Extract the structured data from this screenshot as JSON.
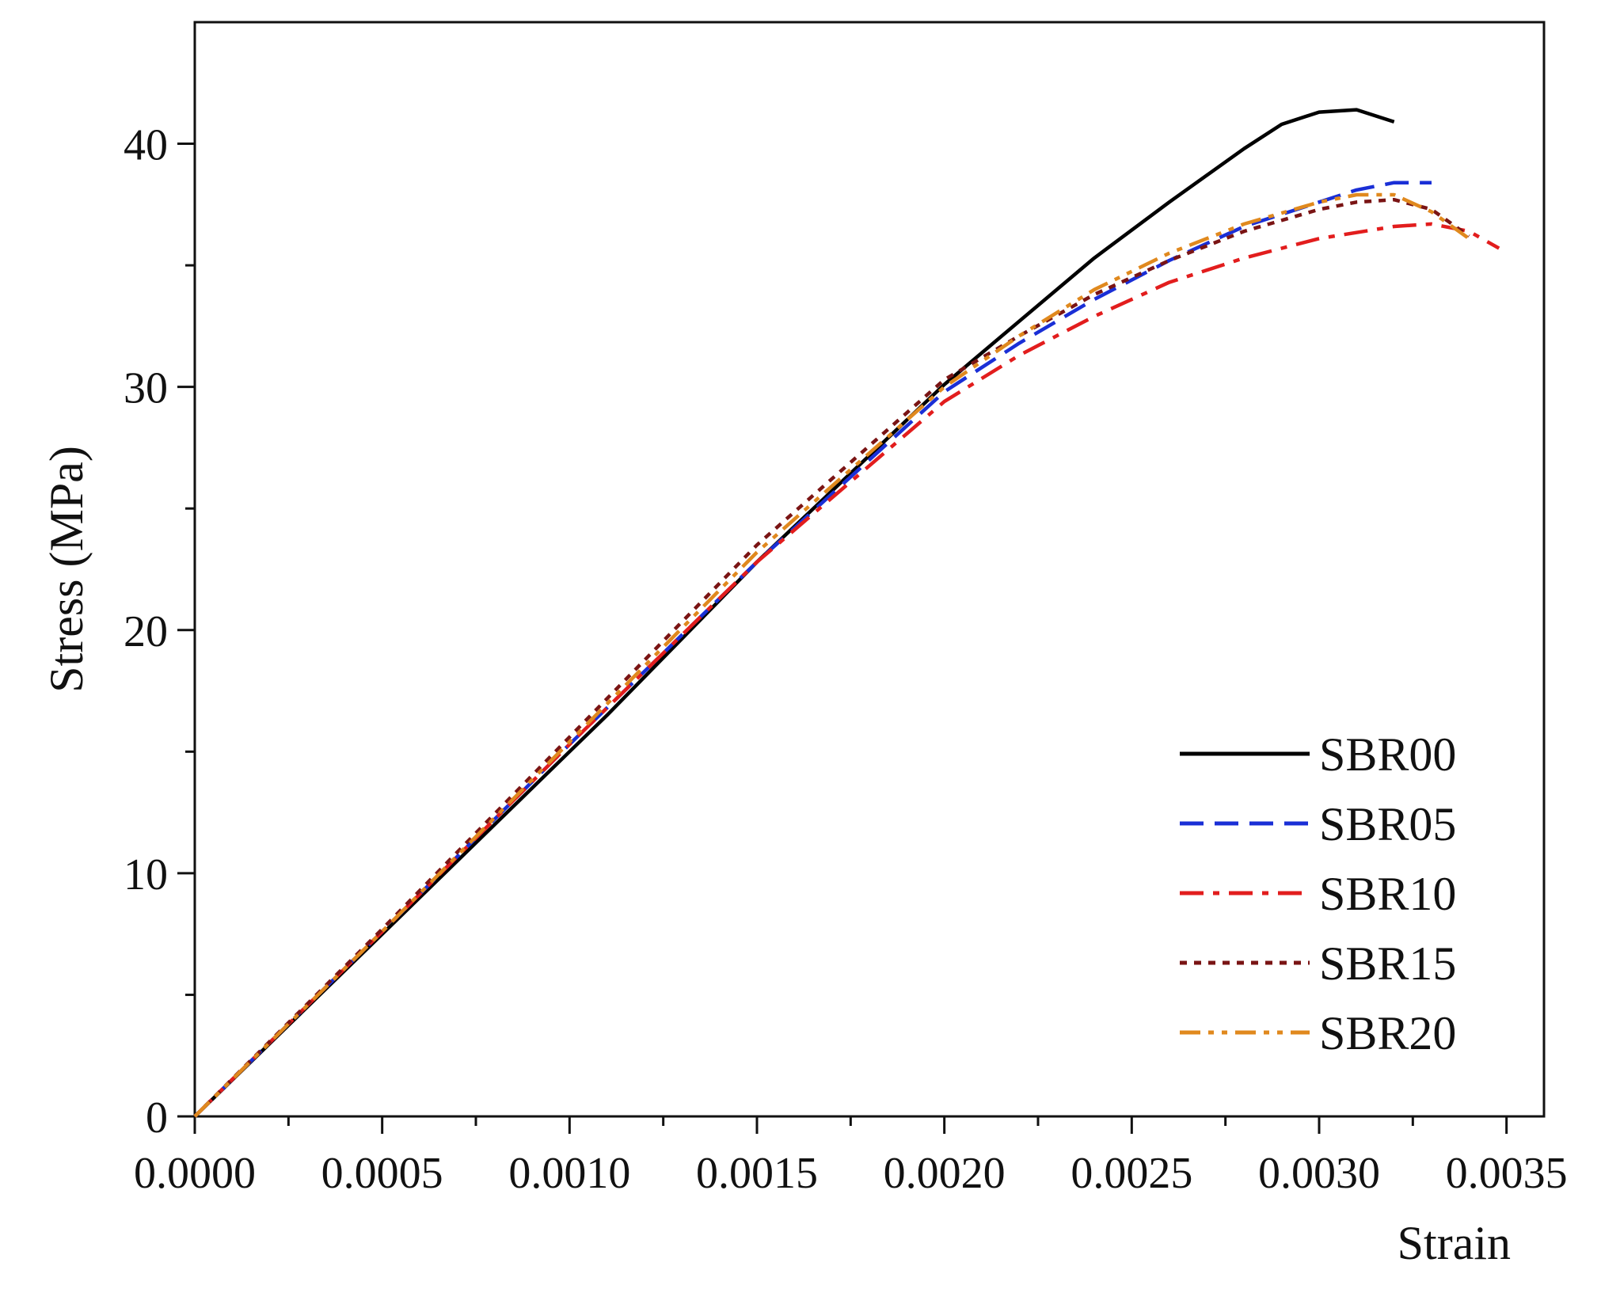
{
  "chart_data": {
    "type": "line",
    "title": "",
    "xlabel": "Strain",
    "ylabel": "Stress (MPa)",
    "xlim": [
      0,
      0.0036
    ],
    "ylim": [
      0,
      45
    ],
    "x_ticks": [
      0.0,
      0.0005,
      0.001,
      0.0015,
      0.002,
      0.0025,
      0.003,
      0.0035
    ],
    "x_tick_labels": [
      "0.0000",
      "0.0005",
      "0.0010",
      "0.0015",
      "0.0020",
      "0.0025",
      "0.0030",
      "0.0035"
    ],
    "y_ticks": [
      0,
      10,
      20,
      30,
      40
    ],
    "y_tick_labels": [
      "0",
      "10",
      "20",
      "30",
      "40"
    ],
    "grid": false,
    "legend_position": "bottom-right",
    "series": [
      {
        "name": "SBR00",
        "color": "#000000",
        "style": "solid",
        "x": [
          0,
          0.0005,
          0.001,
          0.0011,
          0.0015,
          0.002,
          0.0022,
          0.0024,
          0.0026,
          0.0028,
          0.0029,
          0.003,
          0.0031,
          0.0032
        ],
        "y": [
          0,
          7.5,
          15.0,
          16.5,
          22.8,
          30.1,
          32.7,
          35.3,
          37.6,
          39.8,
          40.8,
          41.3,
          41.4,
          40.9
        ]
      },
      {
        "name": "SBR05",
        "color": "#1a2fd6",
        "style": "dashed",
        "x": [
          0,
          0.0005,
          0.001,
          0.0015,
          0.002,
          0.0022,
          0.0024,
          0.0026,
          0.0028,
          0.003,
          0.0031,
          0.0032,
          0.0033
        ],
        "y": [
          0,
          7.6,
          15.3,
          22.8,
          29.8,
          31.8,
          33.6,
          35.2,
          36.6,
          37.6,
          38.1,
          38.4,
          38.4
        ]
      },
      {
        "name": "SBR10",
        "color": "#e21d1d",
        "style": "dashdot",
        "x": [
          0,
          0.0005,
          0.001,
          0.0015,
          0.002,
          0.0022,
          0.0024,
          0.0026,
          0.0028,
          0.003,
          0.0032,
          0.0033,
          0.0034,
          0.00348
        ],
        "y": [
          0,
          7.6,
          15.3,
          22.8,
          29.4,
          31.3,
          32.9,
          34.3,
          35.3,
          36.1,
          36.6,
          36.7,
          36.4,
          35.7
        ]
      },
      {
        "name": "SBR15",
        "color": "#7a1414",
        "style": "dotted",
        "x": [
          0,
          0.0005,
          0.001,
          0.0015,
          0.002,
          0.0022,
          0.0024,
          0.0026,
          0.0028,
          0.003,
          0.0031,
          0.0032,
          0.0033,
          0.0034
        ],
        "y": [
          0,
          7.7,
          15.6,
          23.5,
          30.3,
          32.1,
          33.8,
          35.2,
          36.4,
          37.3,
          37.6,
          37.7,
          37.3,
          36.2
        ]
      },
      {
        "name": "SBR20",
        "color": "#e0891e",
        "style": "dashdotdot",
        "x": [
          0,
          0.0005,
          0.001,
          0.0015,
          0.002,
          0.0022,
          0.0024,
          0.0026,
          0.0028,
          0.003,
          0.0031,
          0.0032,
          0.0033,
          0.0034
        ],
        "y": [
          0,
          7.6,
          15.4,
          23.2,
          30.0,
          32.1,
          34.0,
          35.5,
          36.7,
          37.6,
          37.9,
          37.9,
          37.2,
          36.1
        ]
      }
    ]
  }
}
